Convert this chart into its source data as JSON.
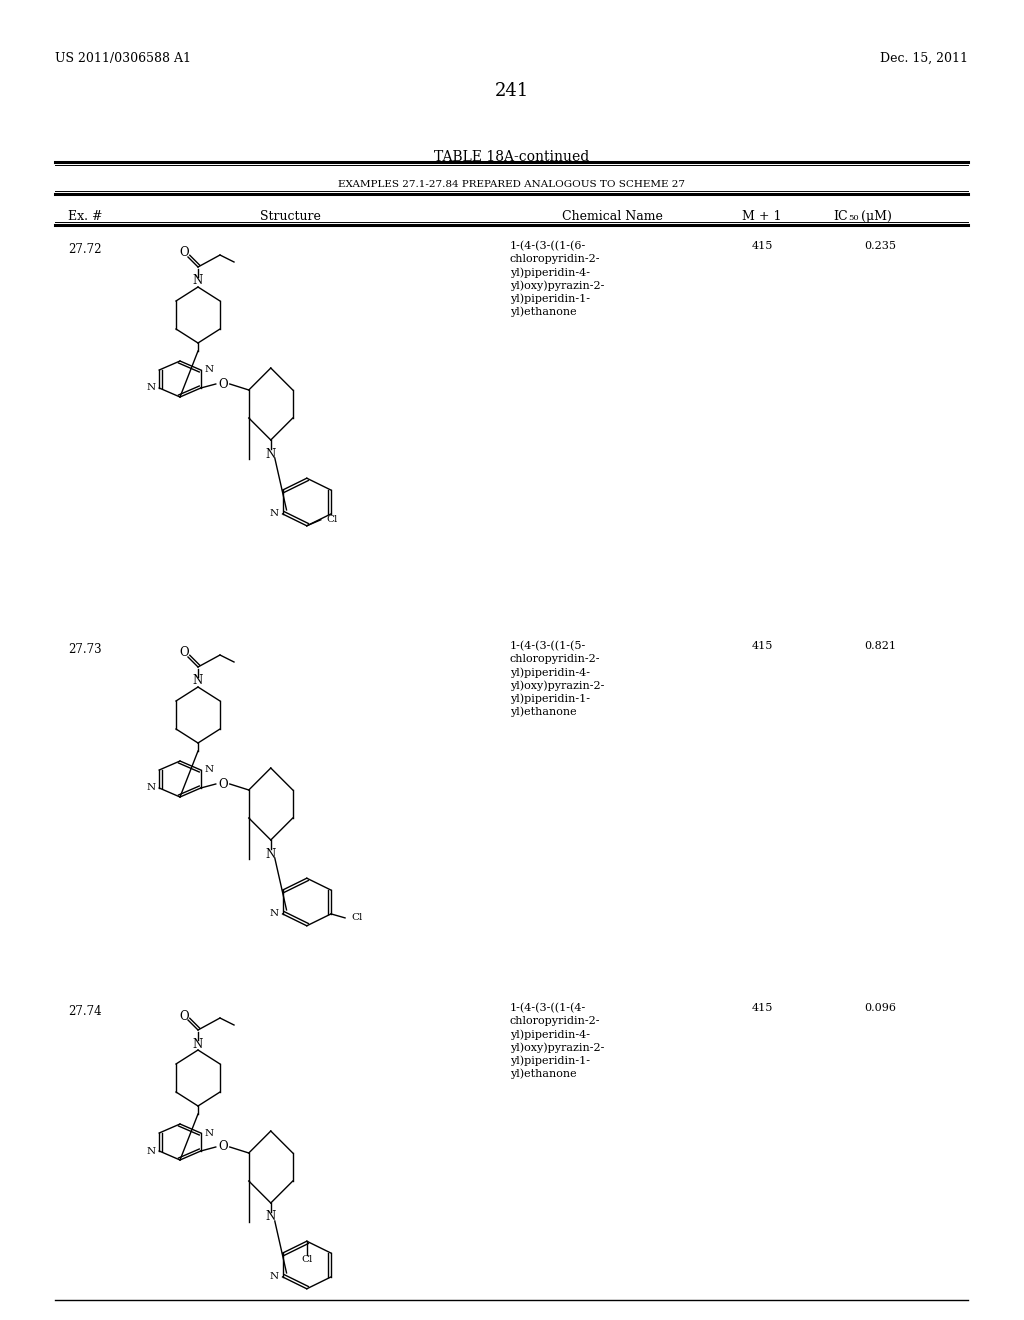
{
  "page_number": "241",
  "patent_number": "US 2011/0306588 A1",
  "patent_date": "Dec. 15, 2011",
  "table_title": "TABLE 18A-continued",
  "table_subtitle": "EXAMPLES 27.1-27.84 PREPARED ANALOGOUS TO SCHEME 27",
  "col_ex": "Ex. #",
  "col_struct": "Structure",
  "col_name": "Chemical Name",
  "col_m1": "M + 1",
  "rows": [
    {
      "ex_num": "27.72",
      "chemical_name": "1-(4-(3-((1-(6-\nchloropyridin-2-\nyl)piperidin-4-\nyl)oxy)pyrazin-2-\nyl)piperidin-1-\nyl)ethanone",
      "m_plus_1": "415",
      "ic50": "0.235",
      "cl_pos": "6"
    },
    {
      "ex_num": "27.73",
      "chemical_name": "1-(4-(3-((1-(5-\nchloropyridin-2-\nyl)piperidin-4-\nyl)oxy)pyrazin-2-\nyl)piperidin-1-\nyl)ethanone",
      "m_plus_1": "415",
      "ic50": "0.821",
      "cl_pos": "5"
    },
    {
      "ex_num": "27.74",
      "chemical_name": "1-(4-(3-((1-(4-\nchloropyridin-2-\nyl)piperidin-4-\nyl)oxy)pyrazin-2-\nyl)piperidin-1-\nyl)ethanone",
      "m_plus_1": "415",
      "ic50": "0.096",
      "cl_pos": "4"
    }
  ],
  "bg_color": "#ffffff",
  "text_color": "#000000",
  "lw": 1.0,
  "font_size_body": 8.5,
  "font_size_title": 10,
  "font_size_page": 9,
  "font_size_mol": 8.5,
  "font_size_mol_sm": 7.5
}
